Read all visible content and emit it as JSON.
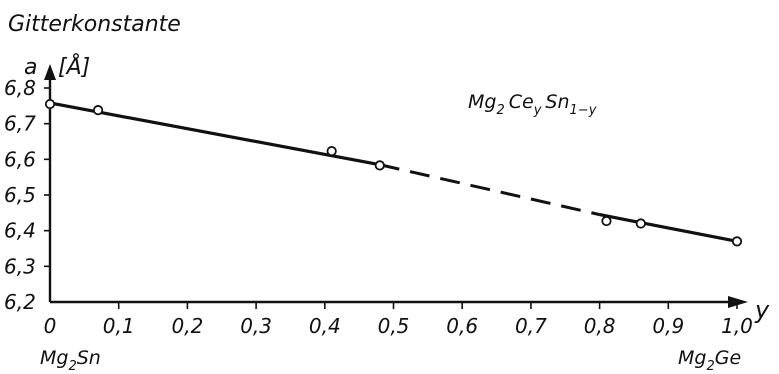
{
  "chart_data": {
    "type": "line",
    "title": "",
    "ylabel_line1": "Gitterkonstante",
    "ylabel_line2": "a",
    "ylabel_unit": "[Å]",
    "xlabel": "y",
    "series_label": "Mg2 Cey Sn1-y",
    "end_labels": {
      "left": "Mg2Sn",
      "right": "Mg2Ge"
    },
    "xlim": [
      0,
      1.0
    ],
    "ylim": [
      6.2,
      6.8
    ],
    "x_ticks": [
      "0",
      "0,1",
      "0,2",
      "0,3",
      "0,4",
      "0,5",
      "0,6",
      "0,7",
      "0,8",
      "0,9",
      "1,0"
    ],
    "y_ticks": [
      "6,2",
      "6,3",
      "6,4",
      "6,5",
      "6,6",
      "6,7",
      "6,8"
    ],
    "points": [
      {
        "x": 0.0,
        "y": 6.755
      },
      {
        "x": 0.07,
        "y": 6.738
      },
      {
        "x": 0.41,
        "y": 6.623
      },
      {
        "x": 0.48,
        "y": 6.583
      },
      {
        "x": 0.81,
        "y": 6.427
      },
      {
        "x": 0.86,
        "y": 6.42
      },
      {
        "x": 1.0,
        "y": 6.37
      }
    ],
    "fit_line": {
      "solid_segments": [
        [
          [
            0.0,
            6.758
          ],
          [
            0.48,
            6.585
          ]
        ],
        [
          [
            0.8,
            6.445
          ],
          [
            1.0,
            6.37
          ]
        ]
      ],
      "dashed_segment": [
        [
          0.48,
          6.585
        ],
        [
          0.8,
          6.445
        ]
      ]
    },
    "grid": false,
    "legend": "none"
  }
}
